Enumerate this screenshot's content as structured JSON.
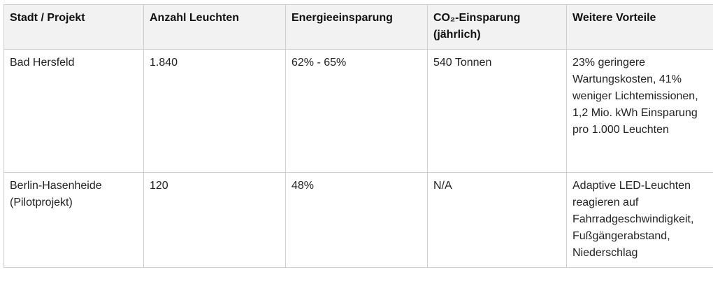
{
  "table": {
    "header": [
      "Stadt / Projekt",
      "Anzahl Leuchten",
      "Energieeinsparung",
      "CO₂-Einsparung (jährlich)",
      "Weitere Vorteile"
    ],
    "rows": [
      [
        "Bad Hersfeld",
        "1.840",
        "62% - 65%",
        "540 Tonnen",
        "23% geringere Wartungskosten, 41% weniger Lichtemissionen, 1,2 Mio. kWh Einsparung pro 1.000 Leuchten"
      ],
      [
        "Berlin-Hasenheide (Pilotprojekt)",
        "120",
        "48%",
        "N/A",
        "Adaptive LED-Leuchten reagieren auf Fahrradgeschwindigkeit, Fußgängerabstand, Niederschlag"
      ]
    ]
  }
}
